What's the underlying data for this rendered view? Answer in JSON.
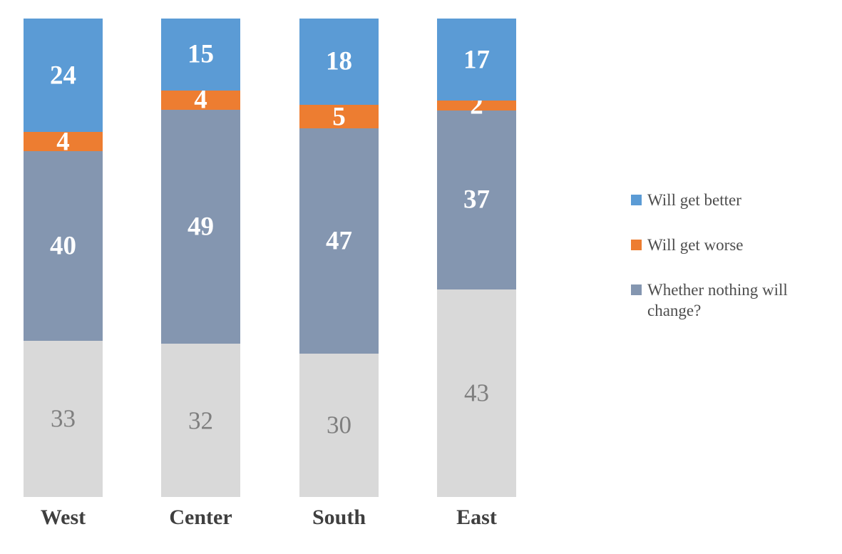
{
  "chart_data": {
    "type": "bar",
    "subtype": "stacked-100-column",
    "title": "",
    "xlabel": "",
    "ylabel": "",
    "gridlines": false,
    "data_labels": true,
    "categories": [
      "West",
      "Center",
      "South",
      "East"
    ],
    "series": [
      {
        "name": "",
        "in_legend": false,
        "color": "#d9d9d9",
        "label_color": "#7f7f7f",
        "label_bold": false,
        "values": [
          33,
          32,
          30,
          43
        ]
      },
      {
        "name": "Whether nothing will change?",
        "in_legend": true,
        "color": "#8496b0",
        "label_color": "#ffffff",
        "label_bold": true,
        "values": [
          40,
          49,
          47,
          37
        ]
      },
      {
        "name": "Will get worse",
        "in_legend": true,
        "color": "#ed7d31",
        "label_color": "#ffffff",
        "label_bold": true,
        "values": [
          4,
          4,
          5,
          2
        ]
      },
      {
        "name": "Will get better",
        "in_legend": true,
        "color": "#5b9bd5",
        "label_color": "#ffffff",
        "label_bold": true,
        "values": [
          24,
          15,
          18,
          17
        ]
      }
    ],
    "legend": {
      "position": "right",
      "entries": [
        {
          "label": "Will get better",
          "color": "#5b9bd5"
        },
        {
          "label": "Will get worse",
          "color": "#ed7d31"
        },
        {
          "label": "Whether nothing will change?",
          "color": "#8496b0"
        }
      ]
    },
    "axis_colors": {
      "category_label": "#3f3f3f",
      "legend_text": "#4d4d4d"
    },
    "bar_totals_note": "segments normalized to full column height"
  }
}
